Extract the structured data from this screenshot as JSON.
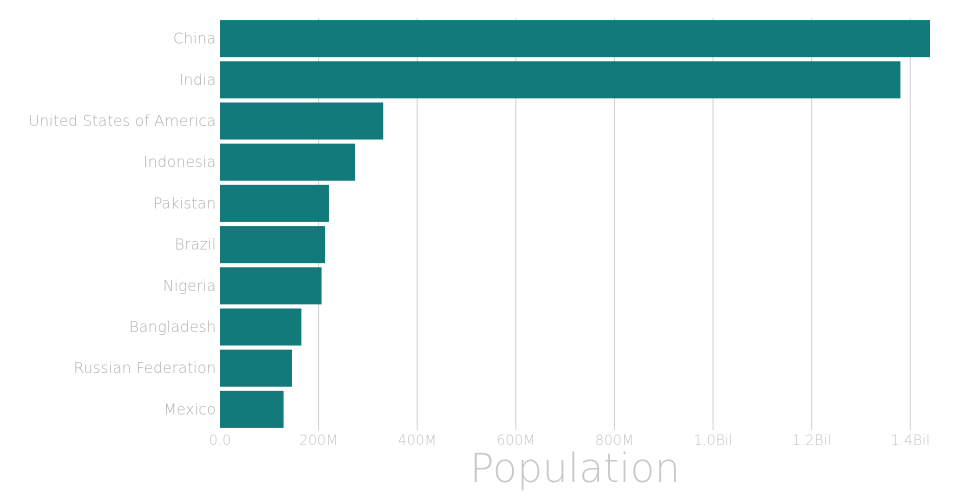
{
  "chart_data": {
    "type": "bar",
    "orientation": "horizontal",
    "categories": [
      "China",
      "India",
      "United States of America",
      "Indonesia",
      "Pakistan",
      "Brazil",
      "Nigeria",
      "Bangladesh",
      "Russian Federation",
      "Mexico"
    ],
    "values": [
      1440000000,
      1380000000,
      331000000,
      274000000,
      221000000,
      213000000,
      206000000,
      165000000,
      146000000,
      129000000
    ],
    "xlabel": "Population",
    "ylabel": "",
    "xlim": [
      0,
      1440000000
    ],
    "x_ticks": [
      0,
      200000000,
      400000000,
      600000000,
      800000000,
      1000000000,
      1200000000,
      1400000000
    ],
    "x_tick_labels": [
      "0.0",
      "200M",
      "400M",
      "600M",
      "800M",
      "1.0Bil",
      "1.2Bil",
      "1.4Bil"
    ],
    "grid": "vertical",
    "bar_color": "#137a7b"
  }
}
